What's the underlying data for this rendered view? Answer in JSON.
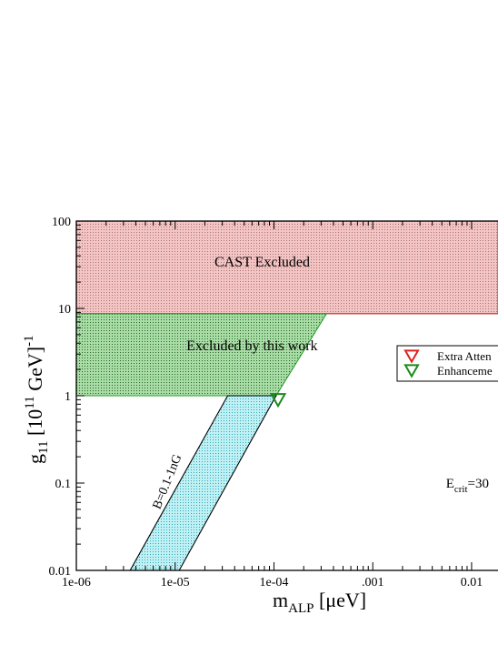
{
  "chart_data": {
    "type": "area",
    "x_scale": "log",
    "y_scale": "log",
    "xlim": [
      1e-06,
      0.0185
    ],
    "ylim": [
      0.01,
      100
    ],
    "x_ticks": [
      {
        "value": 1e-06,
        "label": "1e-06"
      },
      {
        "value": 1e-05,
        "label": "1e-05"
      },
      {
        "value": 0.0001,
        "label": "1e-04"
      },
      {
        "value": 0.001,
        "label": ".001"
      },
      {
        "value": 0.01,
        "label": "0.01"
      }
    ],
    "y_ticks": [
      {
        "value": 0.01,
        "label": "0.01"
      },
      {
        "value": 0.1,
        "label": "0.1"
      },
      {
        "value": 1,
        "label": "1"
      },
      {
        "value": 10,
        "label": "10"
      },
      {
        "value": 100,
        "label": "100"
      }
    ],
    "xlabel": {
      "main": "m",
      "sub": "ALP",
      "rest": " [μeV]"
    },
    "ylabel": {
      "main": "g",
      "sub": "11",
      "mid": " [10",
      "sup": "11",
      "rest": " GeV]",
      "sup2": "-1"
    },
    "regions": [
      {
        "name": "CAST Excluded",
        "label": "CAST Excluded",
        "fill": "#f2c4c4",
        "dot": "#b07070",
        "edge": "#d02020",
        "polygon": [
          [
            1e-06,
            100
          ],
          [
            0.0185,
            100
          ],
          [
            0.0185,
            8.7
          ],
          [
            1e-06,
            8.7
          ]
        ],
        "label_pos": [
          2.5e-05,
          30
        ]
      },
      {
        "name": "Excluded by this work",
        "label": "Excluded by this work",
        "fill": "#a9dba6",
        "dot": "#1e6b1e",
        "edge": "#2aa02a",
        "polygon": [
          [
            1e-06,
            8.7
          ],
          [
            0.00034,
            8.7
          ],
          [
            0.000105,
            1.0
          ],
          [
            1e-06,
            1.0
          ]
        ],
        "label_pos": [
          1.3e-05,
          3.3
        ]
      },
      {
        "name": "B=0.1-1nG",
        "label": "B=0.1-1nG",
        "fill": "#bff0f4",
        "dot": "#2fa8b8",
        "edge": "#000000",
        "polygon": [
          [
            3.5e-06,
            0.01
          ],
          [
            1.1e-05,
            0.01
          ],
          [
            0.000105,
            1.0
          ],
          [
            3.4e-05,
            1.0
          ]
        ],
        "label_pos": [
          9e-06,
          0.1
        ],
        "label_angle": -68
      }
    ],
    "markers": [
      {
        "name": "Enhancement",
        "x": 0.00011,
        "y": 0.95,
        "symbol": "triangle-down",
        "color": "#1a8a1a"
      }
    ],
    "legend": {
      "position": "right",
      "entries": [
        {
          "label": "Extra Atten",
          "symbol": "triangle-down",
          "color": "#e02020"
        },
        {
          "label": "Enhanceme",
          "symbol": "triangle-down",
          "color": "#1a8a1a"
        }
      ]
    },
    "annotations": [
      {
        "text_main": "E",
        "text_sub": "crit",
        "text_rest": "=30",
        "x": 0.0055,
        "y": 0.1
      }
    ],
    "grid": false
  }
}
